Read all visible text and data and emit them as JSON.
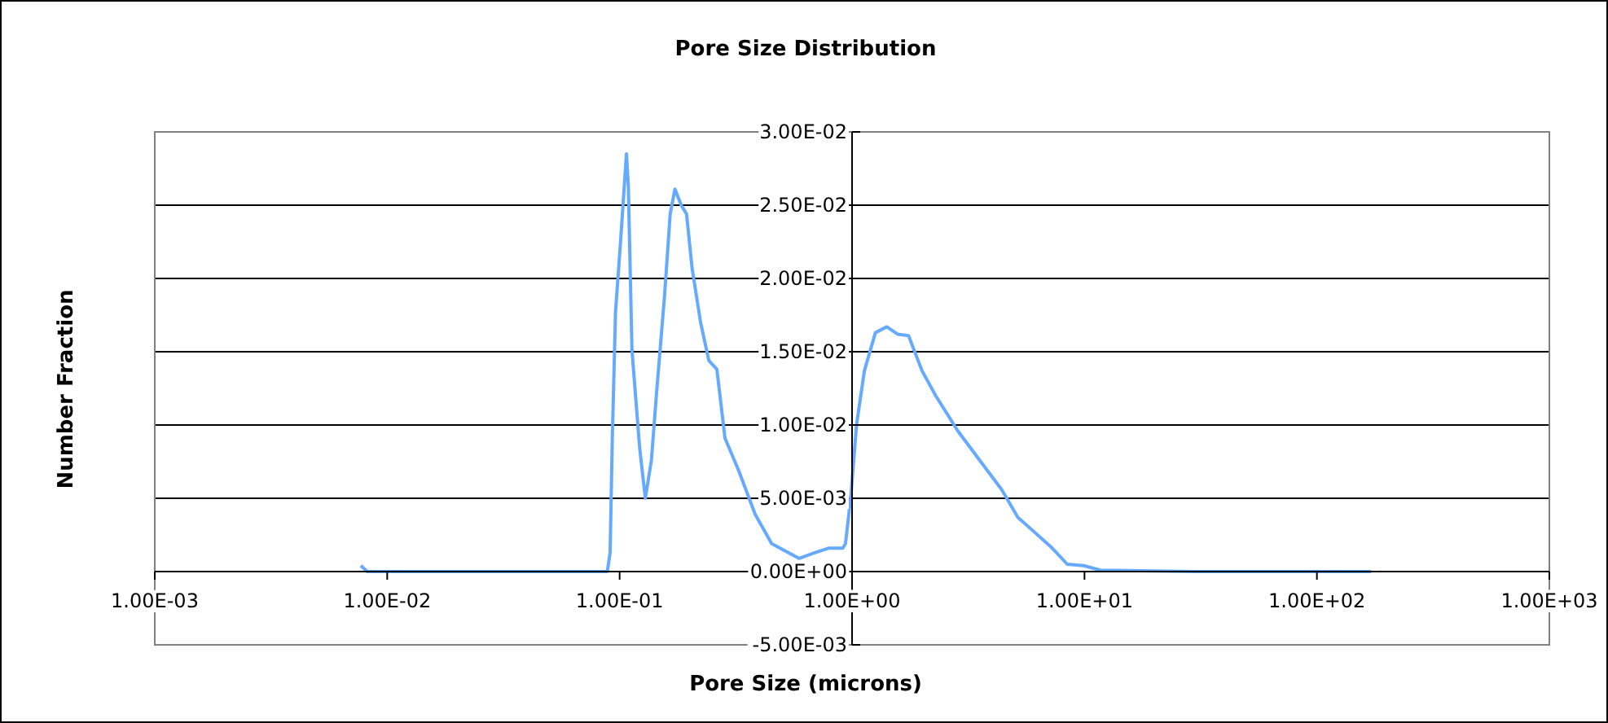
{
  "chart_data": {
    "type": "line",
    "title": "Pore Size Distribution",
    "xlabel": "Pore Size (microns)",
    "ylabel": "Number Fraction",
    "log": "x",
    "grid": "y",
    "legend": false,
    "marker": "none",
    "line_style": "solid",
    "xlim": [
      0.001,
      1000
    ],
    "xticks": [
      {
        "value": 0.001,
        "label": "1.00E-03"
      },
      {
        "value": 0.01,
        "label": "1.00E-02"
      },
      {
        "value": 0.1,
        "label": "1.00E-01"
      },
      {
        "value": 1,
        "label": "1.00E+00"
      },
      {
        "value": 10,
        "label": "1.00E+01"
      },
      {
        "value": 100,
        "label": "1.00E+02"
      },
      {
        "value": 1000,
        "label": "1.00E+03"
      }
    ],
    "ylim": [
      -0.005,
      0.03
    ],
    "yticks": [
      {
        "value": -0.005,
        "label": "-5.00E-03"
      },
      {
        "value": 0,
        "label": "0.00E+00"
      },
      {
        "value": 0.005,
        "label": "5.00E-03"
      },
      {
        "value": 0.01,
        "label": "1.00E-02"
      },
      {
        "value": 0.015,
        "label": "1.50E-02"
      },
      {
        "value": 0.02,
        "label": "2.00E-02"
      },
      {
        "value": 0.025,
        "label": "2.50E-02"
      },
      {
        "value": 0.03,
        "label": "3.00E-02"
      }
    ],
    "series": [
      {
        "color": "#66aaff",
        "x": [
          0.0077,
          0.0082,
          0.03,
          0.0885,
          0.091,
          0.093,
          0.096,
          0.101,
          0.107,
          0.109,
          0.113,
          0.122,
          0.129,
          0.137,
          0.144,
          0.156,
          0.165,
          0.173,
          0.184,
          0.194,
          0.205,
          0.223,
          0.242,
          0.262,
          0.284,
          0.325,
          0.383,
          0.451,
          0.591,
          0.695,
          0.796,
          0.912,
          0.937,
          0.989,
          1.045,
          1.13,
          1.26,
          1.41,
          1.57,
          1.75,
          2.0,
          2.29,
          2.85,
          3.54,
          4.4,
          5.17,
          7.16,
          8.43,
          9.92,
          11.7,
          30,
          171
        ],
        "values": [
          0.0004,
          0,
          0,
          0,
          0.0013,
          0.0091,
          0.0177,
          0.0226,
          0.0285,
          0.0263,
          0.0151,
          0.0084,
          0.005,
          0.0076,
          0.0121,
          0.0188,
          0.0244,
          0.0261,
          0.025,
          0.0244,
          0.0207,
          0.017,
          0.0144,
          0.0138,
          0.0091,
          0.0069,
          0.0039,
          0.0019,
          0.0009,
          0.0013,
          0.0016,
          0.0016,
          0.0019,
          0.0052,
          0.01,
          0.0137,
          0.0163,
          0.0167,
          0.0162,
          0.0161,
          0.0137,
          0.012,
          0.0096,
          0.0076,
          0.0056,
          0.0037,
          0.0017,
          0.0005,
          0.0004,
          0.0001,
          0,
          0
        ]
      }
    ]
  }
}
